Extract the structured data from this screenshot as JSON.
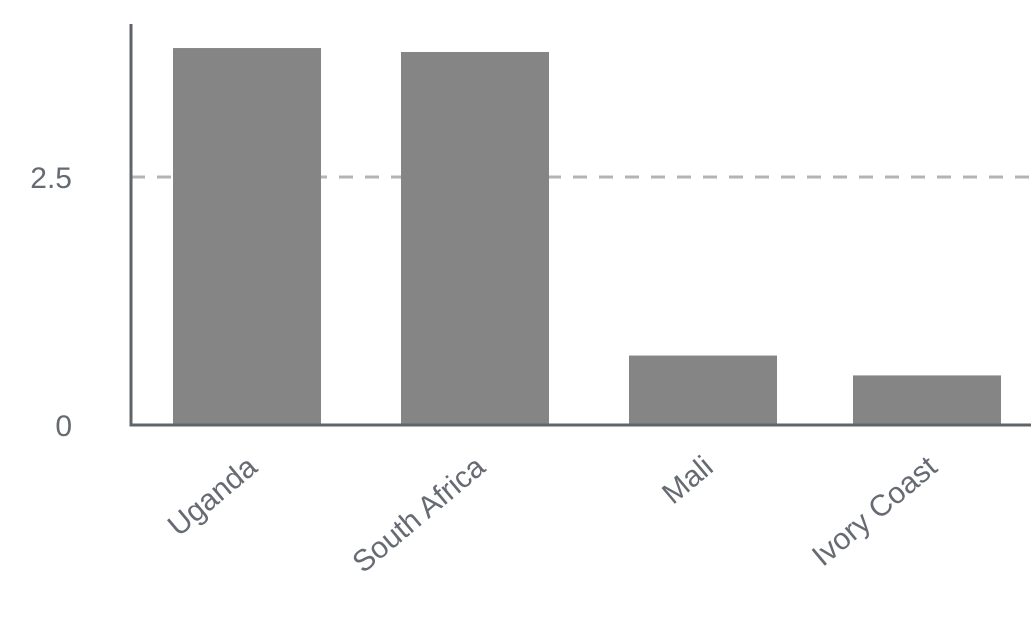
{
  "chart_data": {
    "type": "bar",
    "title": "",
    "xlabel": "",
    "ylabel": "",
    "categories": [
      "Uganda",
      "South Africa",
      "Mali",
      "Ivory Coast"
    ],
    "values": [
      3.8,
      3.76,
      0.7,
      0.5
    ],
    "ylim": [
      0,
      4.0
    ],
    "y_ticks": [
      {
        "value": 0,
        "label": "0"
      },
      {
        "value": 2.5,
        "label": "2.5"
      }
    ],
    "grid": true,
    "colors": {
      "bar": "#858585",
      "axis": "#5f646b",
      "grid": "#b4b4b4",
      "text": "#666b73"
    }
  }
}
